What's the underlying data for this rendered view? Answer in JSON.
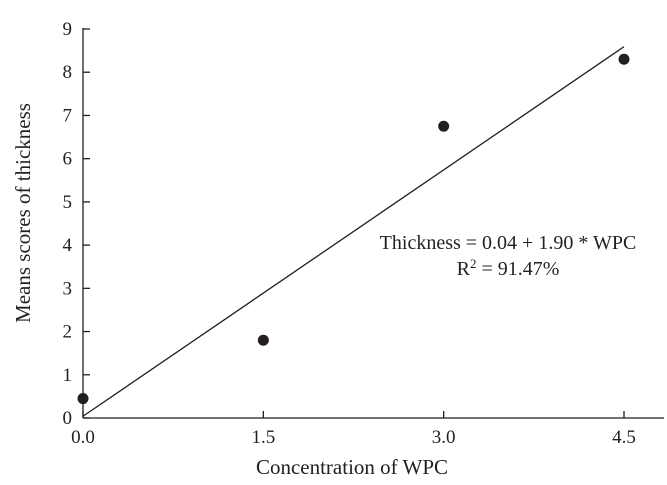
{
  "chart_data": {
    "type": "scatter",
    "title": "",
    "xlabel": "Concentration of WPC",
    "ylabel": "Means scores of thickness",
    "xlim": [
      0,
      4.5
    ],
    "ylim": [
      0,
      9
    ],
    "xticks": [
      "0.0",
      "1.5",
      "3.0",
      "4.5"
    ],
    "yticks": [
      "0",
      "1",
      "2",
      "3",
      "4",
      "5",
      "6",
      "7",
      "8",
      "9"
    ],
    "grid": false,
    "points": [
      {
        "x": 0.0,
        "y": 0.45
      },
      {
        "x": 1.5,
        "y": 1.8
      },
      {
        "x": 3.0,
        "y": 6.75
      },
      {
        "x": 4.5,
        "y": 8.3
      }
    ],
    "fit_line": {
      "intercept": 0.04,
      "slope": 1.9
    },
    "annotation": {
      "equation": "Thickness = 0.04 + 1.90 * WPC",
      "r2_prefix": "R",
      "r2_exponent": "2",
      "r2_value": " = 91.47%"
    }
  }
}
